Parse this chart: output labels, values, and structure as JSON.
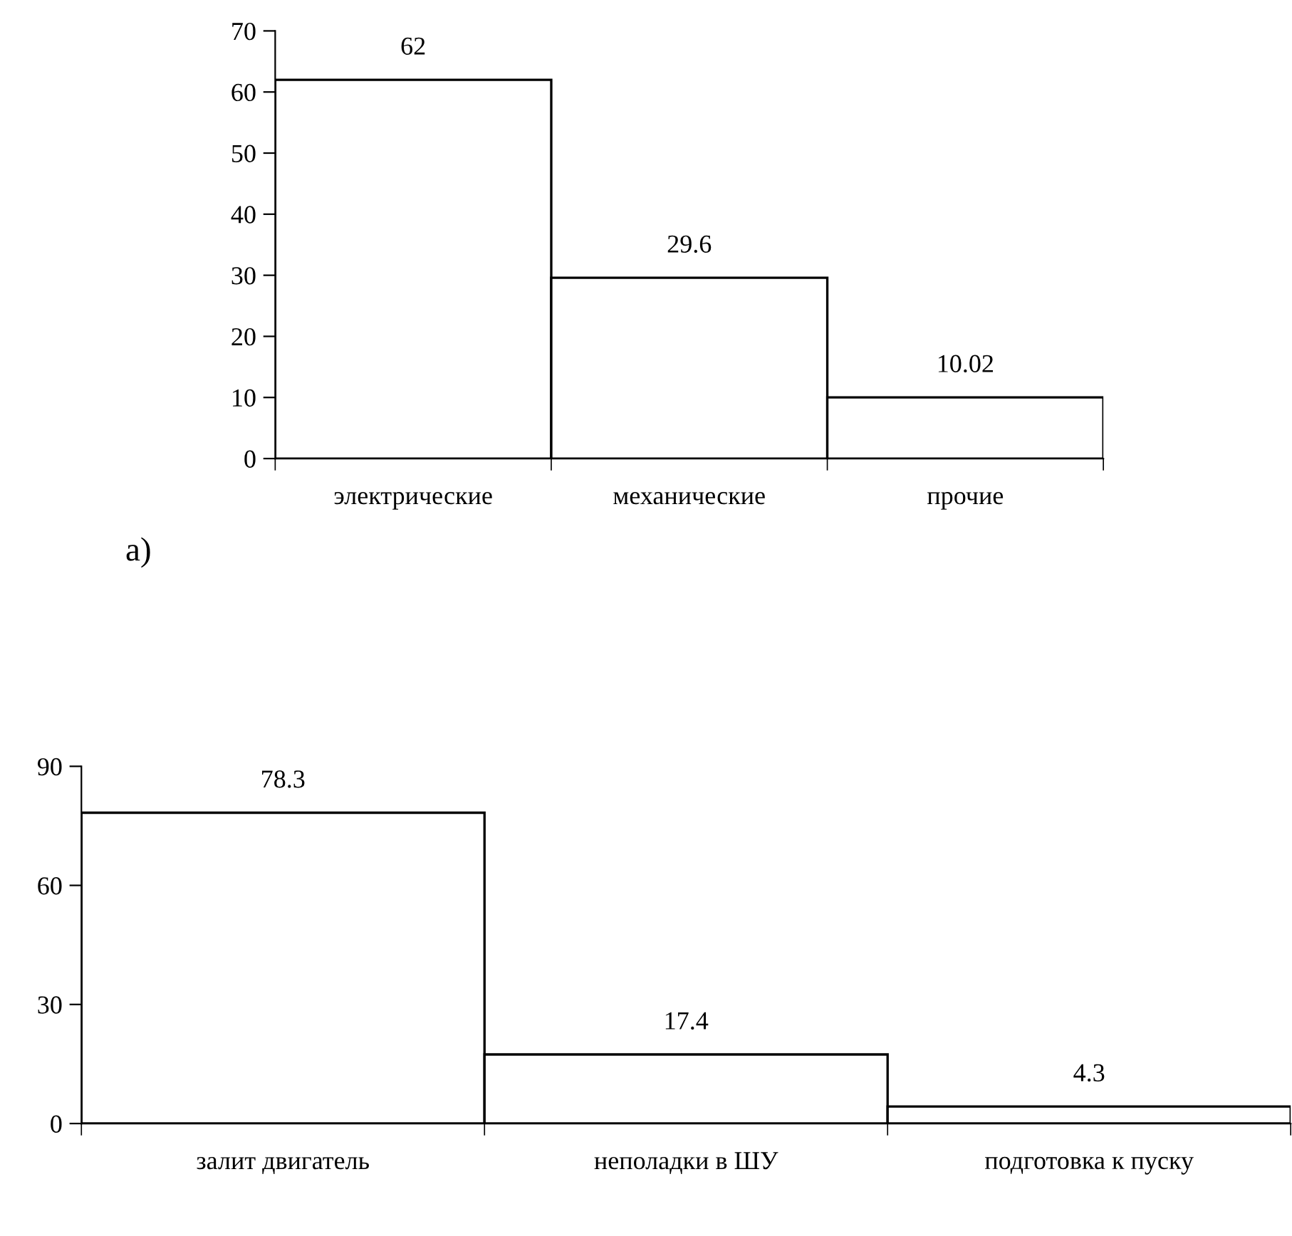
{
  "chart_data": [
    {
      "type": "bar",
      "categories": [
        "электрические",
        "механические",
        "прочие"
      ],
      "values": [
        62,
        29.6,
        10.02
      ],
      "color": "#ffffff",
      "ylim": [
        0,
        70
      ],
      "yticks": [
        0,
        10,
        20,
        30,
        40,
        50,
        60,
        70
      ],
      "data_labels": true,
      "grid": false,
      "legend": false,
      "annotations": [
        "а)"
      ]
    },
    {
      "type": "bar",
      "categories": [
        "залит двигатель",
        "неполадки в ШУ",
        "подготовка к пуску"
      ],
      "values": [
        78.3,
        17.4,
        4.3
      ],
      "color": "#ffffff",
      "ylim": [
        0,
        90
      ],
      "yticks": [
        0,
        30,
        60,
        90
      ],
      "data_labels": true,
      "grid": false,
      "legend": false
    }
  ]
}
